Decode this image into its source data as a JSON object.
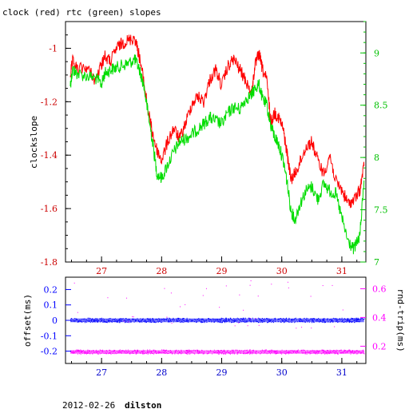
{
  "title": "clock (red) rtc (green) slopes",
  "footer": {
    "date": "2012-02-26",
    "host": "dilston"
  },
  "colors": {
    "clock": "#ff0000",
    "rtc": "#00dd00",
    "offset": "#0000ff",
    "roundtrip": "#ff00ff",
    "axis_left_bottom": "#0000ff",
    "axis_right_bottom": "#ff00ff",
    "axis_right_top": "#00c000",
    "x_ticks_top": "#cc0000",
    "x_ticks_bottom": "#0000cc"
  },
  "chart_data": [
    {
      "type": "line",
      "panel": "top",
      "title": "clock (red) rtc (green) slopes",
      "xlabel": "",
      "ylabel": "clockslope",
      "y2label": "",
      "xlim": [
        26.4,
        31.4
      ],
      "ylim": [
        -1.8,
        -0.9
      ],
      "y2lim": [
        7.0,
        9.3
      ],
      "grid": false,
      "x_ticks": [
        "27",
        "28",
        "29",
        "30",
        "31"
      ],
      "y_ticks": [
        "-1",
        "-1.2",
        "-1.4",
        "-1.6",
        "-1.8"
      ],
      "y2_ticks": [
        "9",
        "8.5",
        "8",
        "7.5",
        "7"
      ],
      "series": [
        {
          "name": "clock",
          "axis": "left",
          "x": [
            26.48,
            26.52,
            26.6,
            26.75,
            26.9,
            27.0,
            27.05,
            27.15,
            27.25,
            27.35,
            27.45,
            27.55,
            27.62,
            27.7,
            27.78,
            27.85,
            27.92,
            28.0,
            28.1,
            28.2,
            28.3,
            28.4,
            28.5,
            28.6,
            28.7,
            28.8,
            28.9,
            29.0,
            29.1,
            29.2,
            29.3,
            29.4,
            29.5,
            29.55,
            29.62,
            29.68,
            29.75,
            29.82,
            29.88,
            29.95,
            30.02,
            30.08,
            30.15,
            30.22,
            30.3,
            30.4,
            30.5,
            30.6,
            30.7,
            30.8,
            30.9,
            31.0,
            31.1,
            31.2,
            31.3,
            31.37
          ],
          "values": [
            -1.1,
            -1.05,
            -1.08,
            -1.07,
            -1.12,
            -1.06,
            -1.03,
            -1.05,
            -1.0,
            -0.98,
            -0.97,
            -0.96,
            -1.02,
            -1.12,
            -1.24,
            -1.32,
            -1.38,
            -1.42,
            -1.35,
            -1.3,
            -1.34,
            -1.28,
            -1.21,
            -1.18,
            -1.2,
            -1.12,
            -1.08,
            -1.14,
            -1.07,
            -1.04,
            -1.08,
            -1.12,
            -1.17,
            -1.07,
            -1.02,
            -1.08,
            -1.12,
            -1.28,
            -1.24,
            -1.26,
            -1.3,
            -1.38,
            -1.49,
            -1.47,
            -1.43,
            -1.37,
            -1.35,
            -1.42,
            -1.47,
            -1.4,
            -1.5,
            -1.53,
            -1.58,
            -1.57,
            -1.53,
            -1.44
          ]
        },
        {
          "name": "rtc",
          "axis": "right",
          "x": [
            26.48,
            26.52,
            26.6,
            26.75,
            26.9,
            27.0,
            27.05,
            27.15,
            27.25,
            27.35,
            27.45,
            27.55,
            27.62,
            27.7,
            27.78,
            27.85,
            27.92,
            28.0,
            28.1,
            28.2,
            28.3,
            28.4,
            28.5,
            28.6,
            28.7,
            28.8,
            28.9,
            29.0,
            29.1,
            29.2,
            29.3,
            29.4,
            29.5,
            29.55,
            29.62,
            29.68,
            29.75,
            29.82,
            29.88,
            29.95,
            30.02,
            30.08,
            30.15,
            30.22,
            30.3,
            30.4,
            30.5,
            30.6,
            30.7,
            30.8,
            30.9,
            31.0,
            31.1,
            31.2,
            31.3,
            31.37
          ],
          "values": [
            8.7,
            8.84,
            8.8,
            8.78,
            8.76,
            8.7,
            8.8,
            8.84,
            8.86,
            8.88,
            8.9,
            8.94,
            8.86,
            8.7,
            8.4,
            8.15,
            7.85,
            7.8,
            7.93,
            8.05,
            8.15,
            8.18,
            8.22,
            8.27,
            8.32,
            8.38,
            8.35,
            8.32,
            8.42,
            8.48,
            8.46,
            8.56,
            8.6,
            8.66,
            8.7,
            8.56,
            8.5,
            8.3,
            8.2,
            8.12,
            7.98,
            7.8,
            7.5,
            7.4,
            7.55,
            7.68,
            7.72,
            7.6,
            7.75,
            7.68,
            7.65,
            7.42,
            7.2,
            7.12,
            7.25,
            7.78
          ]
        }
      ]
    },
    {
      "type": "scatter",
      "panel": "bottom",
      "xlabel": "",
      "ylabel": "offset(ms)",
      "y2label": "rnd-trip(ms)",
      "xlim": [
        26.4,
        31.4
      ],
      "ylim": [
        -0.28,
        0.28
      ],
      "y2lim": [
        0.08,
        0.68
      ],
      "grid": false,
      "x_ticks": [
        "27",
        "28",
        "29",
        "30",
        "31"
      ],
      "y_ticks": [
        "0.2",
        "0.1",
        "0",
        "-0.1",
        "-0.2"
      ],
      "y2_ticks": [
        "0.6",
        "0.4",
        "0.2"
      ],
      "series": [
        {
          "name": "offset",
          "axis": "left",
          "center": 0.0,
          "spread": 0.012
        },
        {
          "name": "rnd-trip",
          "axis": "right",
          "center": 0.16,
          "spread": 0.012
        }
      ]
    }
  ]
}
